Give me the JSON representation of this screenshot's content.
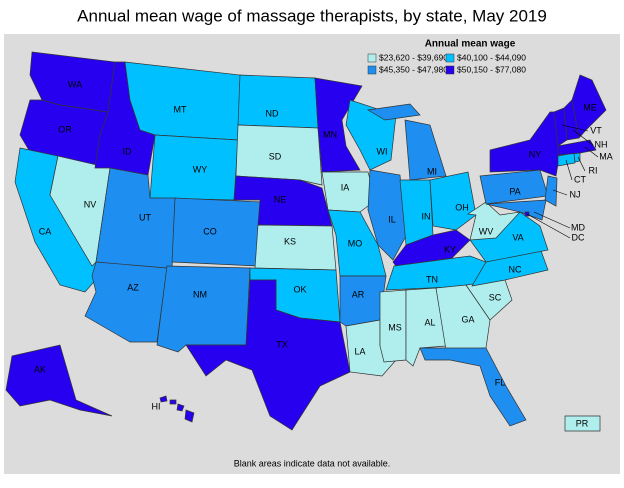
{
  "title": "Annual mean wage of massage therapists, by state, May 2019",
  "legend": {
    "title": "Annual mean wage",
    "items": [
      {
        "label": "$23,620 - $39,690",
        "color": "#b0eeee"
      },
      {
        "label": "$40,100 - $44,090",
        "color": "#00c0ff"
      },
      {
        "label": "$45,350 - $47,980",
        "color": "#1e8ef0"
      },
      {
        "label": "$50,150 - $77,080",
        "color": "#2800f0"
      }
    ]
  },
  "states": [
    {
      "label": "WA",
      "color": "#2800f0"
    },
    {
      "label": "OR",
      "color": "#2800f0"
    },
    {
      "label": "CA",
      "color": "#00c0ff"
    },
    {
      "label": "NV",
      "color": "#b0eeee"
    },
    {
      "label": "ID",
      "color": "#2800f0"
    },
    {
      "label": "MT",
      "color": "#00c0ff"
    },
    {
      "label": "WY",
      "color": "#00c0ff"
    },
    {
      "label": "UT",
      "color": "#1e8ef0"
    },
    {
      "label": "CO",
      "color": "#1e8ef0"
    },
    {
      "label": "AZ",
      "color": "#1e8ef0"
    },
    {
      "label": "NM",
      "color": "#1e8ef0"
    },
    {
      "label": "ND",
      "color": "#00c0ff"
    },
    {
      "label": "SD",
      "color": "#b0eeee"
    },
    {
      "label": "NE",
      "color": "#2800f0"
    },
    {
      "label": "KS",
      "color": "#b0eeee"
    },
    {
      "label": "OK",
      "color": "#00c0ff"
    },
    {
      "label": "TX",
      "color": "#2800f0"
    },
    {
      "label": "MN",
      "color": "#2800f0"
    },
    {
      "label": "IA",
      "color": "#b0eeee"
    },
    {
      "label": "MO",
      "color": "#00c0ff"
    },
    {
      "label": "AR",
      "color": "#1e8ef0"
    },
    {
      "label": "LA",
      "color": "#b0eeee"
    },
    {
      "label": "WI",
      "color": "#00c0ff"
    },
    {
      "label": "IL",
      "color": "#1e8ef0"
    },
    {
      "label": "MI",
      "color": "#1e8ef0"
    },
    {
      "label": "IN",
      "color": "#00c0ff"
    },
    {
      "label": "OH",
      "color": "#00c0ff"
    },
    {
      "label": "KY",
      "color": "#2800f0"
    },
    {
      "label": "TN",
      "color": "#00c0ff"
    },
    {
      "label": "MS",
      "color": "#b0eeee"
    },
    {
      "label": "AL",
      "color": "#b0eeee"
    },
    {
      "label": "GA",
      "color": "#b0eeee"
    },
    {
      "label": "FL",
      "color": "#1e8ef0"
    },
    {
      "label": "SC",
      "color": "#b0eeee"
    },
    {
      "label": "NC",
      "color": "#00c0ff"
    },
    {
      "label": "VA",
      "color": "#00c0ff"
    },
    {
      "label": "WV",
      "color": "#b0eeee"
    },
    {
      "label": "PA",
      "color": "#1e8ef0"
    },
    {
      "label": "NY",
      "color": "#2800f0"
    },
    {
      "label": "NJ",
      "color": "#1e8ef0"
    },
    {
      "label": "MD",
      "color": "#1e8ef0"
    },
    {
      "label": "DC",
      "color": "#2800f0"
    },
    {
      "label": "CT",
      "color": "#00c0ff"
    },
    {
      "label": "RI",
      "color": "#00c0ff"
    },
    {
      "label": "MA",
      "color": "#2800f0"
    },
    {
      "label": "VT",
      "color": "#2800f0"
    },
    {
      "label": "NH",
      "color": "#2800f0"
    },
    {
      "label": "ME",
      "color": "#2800f0"
    },
    {
      "label": "AK",
      "color": "#2800f0"
    },
    {
      "label": "HI",
      "color": "#2800f0"
    },
    {
      "label": "PR",
      "color": "#b0eeee"
    }
  ],
  "footnote": "Blank areas indicate data not available."
}
